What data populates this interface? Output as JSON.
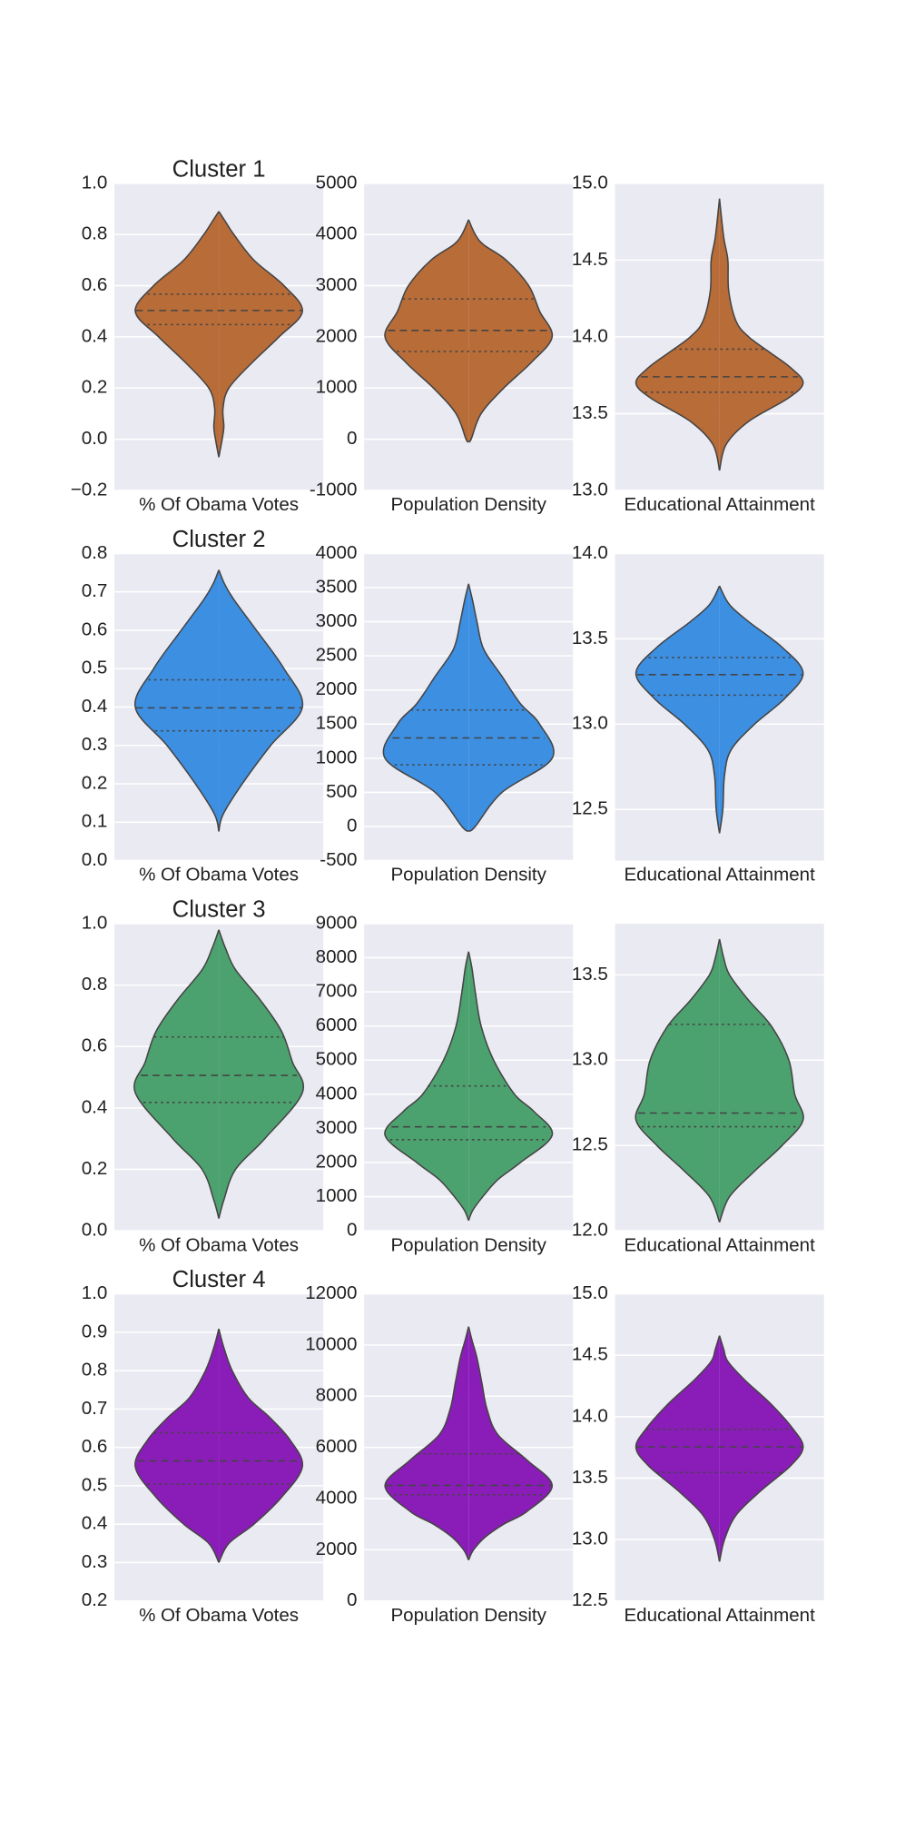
{
  "chart_data": [
    {
      "type": "violin",
      "title": "Cluster 1",
      "xlabel": "% Of Obama Votes",
      "color": "#b86c38",
      "ylim": [
        -0.2,
        1.0
      ],
      "yticks": [
        {
          "value": -0.2,
          "label": "−0.2"
        },
        {
          "value": 0,
          "label": "0.0"
        },
        0.2,
        0.4,
        0.6,
        0.8,
        {
          "value": 1,
          "label": "1.0"
        }
      ],
      "y": [
        -0.07,
        0.0,
        0.05,
        0.12,
        0.2,
        0.3,
        0.4,
        0.5,
        0.6,
        0.7,
        0.8,
        0.85,
        0.89
      ],
      "density": [
        0,
        0.04,
        0.06,
        0.05,
        0.12,
        0.4,
        0.72,
        1.0,
        0.78,
        0.42,
        0.18,
        0.08,
        0
      ],
      "q1": 0.448,
      "median": 0.503,
      "q3": 0.567
    },
    {
      "type": "violin",
      "xlabel": "Population Density",
      "color": "#b86c38",
      "ylim": [
        -1000,
        5000
      ],
      "yticks": [
        -1000,
        0,
        1000,
        2000,
        3000,
        4000,
        5000
      ],
      "y": [
        -40,
        0,
        500,
        1000,
        1500,
        2000,
        2500,
        3000,
        3500,
        3800,
        4000,
        4290
      ],
      "density": [
        0,
        0.03,
        0.15,
        0.42,
        0.75,
        1.0,
        0.85,
        0.72,
        0.45,
        0.18,
        0.08,
        0
      ],
      "q1": 1715,
      "median": 2126,
      "q3": 2742
    },
    {
      "type": "violin",
      "xlabel": "Educational Attainment",
      "color": "#b86c38",
      "ylim": [
        13.0,
        15.0
      ],
      "yticks": [
        {
          "value": 13,
          "label": "13.0"
        },
        13.5,
        {
          "value": 14,
          "label": "14.0"
        },
        14.5,
        {
          "value": 15,
          "label": "15.0"
        }
      ],
      "y": [
        13.13,
        13.3,
        13.45,
        13.6,
        13.7,
        13.8,
        13.9,
        14.0,
        14.1,
        14.3,
        14.5,
        14.65,
        14.9
      ],
      "density": [
        0,
        0.08,
        0.35,
        0.82,
        1.0,
        0.85,
        0.6,
        0.35,
        0.2,
        0.11,
        0.1,
        0.05,
        0
      ],
      "q1": 13.64,
      "median": 13.74,
      "q3": 13.92
    },
    {
      "type": "violin",
      "title": "Cluster 2",
      "xlabel": "% Of Obama Votes",
      "color": "#3d8fe2",
      "ylim": [
        0.0,
        0.8
      ],
      "yticks": [
        {
          "value": 0,
          "label": "0.0"
        },
        0.1,
        0.2,
        0.3,
        0.4,
        0.5,
        0.6,
        0.7,
        0.8
      ],
      "y": [
        0.076,
        0.12,
        0.2,
        0.3,
        0.4,
        0.5,
        0.6,
        0.68,
        0.72,
        0.757
      ],
      "density": [
        0,
        0.05,
        0.28,
        0.62,
        1.0,
        0.78,
        0.45,
        0.18,
        0.07,
        0
      ],
      "q1": 0.338,
      "median": 0.398,
      "q3": 0.471
    },
    {
      "type": "violin",
      "xlabel": "Population Density",
      "color": "#3d8fe2",
      "ylim": [
        -500,
        4000
      ],
      "yticks": [
        -500,
        0,
        500,
        1000,
        1500,
        2000,
        2500,
        3000,
        3500,
        4000
      ],
      "y": [
        -70,
        0,
        500,
        1000,
        1500,
        1800,
        2200,
        2600,
        3000,
        3300,
        3555
      ],
      "density": [
        0,
        0.08,
        0.4,
        1.0,
        0.85,
        0.62,
        0.4,
        0.18,
        0.1,
        0.05,
        0
      ],
      "q1": 903,
      "median": 1297,
      "q3": 1707
    },
    {
      "type": "violin",
      "xlabel": "Educational Attainment",
      "color": "#3d8fe2",
      "ylim": [
        12.2,
        14.0
      ],
      "yticks": [
        12.5,
        {
          "value": 13,
          "label": "13.0"
        },
        13.5,
        {
          "value": 14,
          "label": "14.0"
        }
      ],
      "y": [
        12.36,
        12.5,
        12.7,
        12.85,
        13.0,
        13.15,
        13.3,
        13.45,
        13.6,
        13.7,
        13.81
      ],
      "density": [
        0,
        0.04,
        0.06,
        0.14,
        0.42,
        0.78,
        1.0,
        0.75,
        0.35,
        0.12,
        0
      ],
      "q1": 13.17,
      "median": 13.29,
      "q3": 13.39
    },
    {
      "type": "violin",
      "title": "Cluster 3",
      "xlabel": "% Of Obama Votes",
      "color": "#4ca26f",
      "ylim": [
        0.0,
        1.0
      ],
      "yticks": [
        {
          "value": 0,
          "label": "0.0"
        },
        0.2,
        0.4,
        0.6,
        0.8,
        {
          "value": 1,
          "label": "1.0"
        }
      ],
      "y": [
        0.04,
        0.1,
        0.2,
        0.3,
        0.45,
        0.55,
        0.65,
        0.75,
        0.85,
        0.92,
        0.98
      ],
      "density": [
        0,
        0.06,
        0.2,
        0.55,
        1.0,
        0.88,
        0.75,
        0.5,
        0.2,
        0.08,
        0
      ],
      "q1": 0.418,
      "median": 0.506,
      "q3": 0.631
    },
    {
      "type": "violin",
      "xlabel": "Population Density",
      "color": "#4ca26f",
      "ylim": [
        0,
        9000
      ],
      "yticks": [
        0,
        1000,
        2000,
        3000,
        4000,
        5000,
        6000,
        7000,
        8000,
        9000
      ],
      "y": [
        300,
        600,
        1000,
        1500,
        2000,
        2800,
        3500,
        4000,
        5000,
        6000,
        7000,
        7700,
        8180
      ],
      "density": [
        0,
        0.05,
        0.17,
        0.35,
        0.62,
        1.0,
        0.78,
        0.55,
        0.3,
        0.15,
        0.08,
        0.04,
        0
      ],
      "q1": 2670,
      "median": 3046,
      "q3": 4244
    },
    {
      "type": "violin",
      "xlabel": "Educational Attainment",
      "color": "#4ca26f",
      "ylim": [
        12.0,
        13.8
      ],
      "yticks": [
        {
          "value": 12,
          "label": "12.0"
        },
        12.5,
        {
          "value": 13,
          "label": "13.0"
        },
        13.5
      ],
      "y": [
        12.05,
        12.2,
        12.35,
        12.5,
        12.65,
        12.8,
        13.0,
        13.2,
        13.35,
        13.5,
        13.6,
        13.71
      ],
      "density": [
        0,
        0.12,
        0.42,
        0.75,
        1.0,
        0.9,
        0.83,
        0.62,
        0.35,
        0.12,
        0.05,
        0
      ],
      "q1": 12.61,
      "median": 12.69,
      "q3": 13.21
    },
    {
      "type": "violin",
      "title": "Cluster 4",
      "xlabel": "% Of Obama Votes",
      "color": "#8a1db8",
      "ylim": [
        0.2,
        1.0
      ],
      "yticks": [
        0.2,
        0.3,
        0.4,
        0.5,
        0.6,
        0.7,
        0.8,
        0.9,
        {
          "value": 1,
          "label": "1.0"
        }
      ],
      "y": [
        0.3,
        0.35,
        0.4,
        0.47,
        0.55,
        0.62,
        0.68,
        0.73,
        0.8,
        0.86,
        0.909
      ],
      "density": [
        0,
        0.12,
        0.42,
        0.75,
        1.0,
        0.85,
        0.6,
        0.35,
        0.16,
        0.06,
        0
      ],
      "q1": 0.504,
      "median": 0.565,
      "q3": 0.638
    },
    {
      "type": "violin",
      "xlabel": "Population Density",
      "color": "#8a1db8",
      "ylim": [
        0,
        12000
      ],
      "yticks": [
        0,
        2000,
        4000,
        6000,
        8000,
        10000,
        12000
      ],
      "y": [
        1600,
        2000,
        2500,
        3000,
        3500,
        4500,
        5500,
        6500,
        7500,
        8500,
        9500,
        10200,
        10720
      ],
      "density": [
        0,
        0.06,
        0.2,
        0.42,
        0.7,
        1.0,
        0.7,
        0.35,
        0.22,
        0.16,
        0.1,
        0.04,
        0
      ],
      "q1": 4152,
      "median": 4517,
      "q3": 5749
    },
    {
      "type": "violin",
      "xlabel": "Educational Attainment",
      "color": "#8a1db8",
      "ylim": [
        12.5,
        15.0
      ],
      "yticks": [
        12.5,
        {
          "value": 13,
          "label": "13.0"
        },
        13.5,
        {
          "value": 14,
          "label": "14.0"
        },
        14.5,
        {
          "value": 15,
          "label": "15.0"
        }
      ],
      "y": [
        12.82,
        13.0,
        13.2,
        13.4,
        13.6,
        13.75,
        13.9,
        14.1,
        14.3,
        14.45,
        14.55,
        14.66
      ],
      "density": [
        0,
        0.06,
        0.2,
        0.5,
        0.85,
        1.0,
        0.88,
        0.62,
        0.3,
        0.1,
        0.05,
        0
      ],
      "q1": 13.546,
      "median": 13.755,
      "q3": 13.897
    }
  ]
}
